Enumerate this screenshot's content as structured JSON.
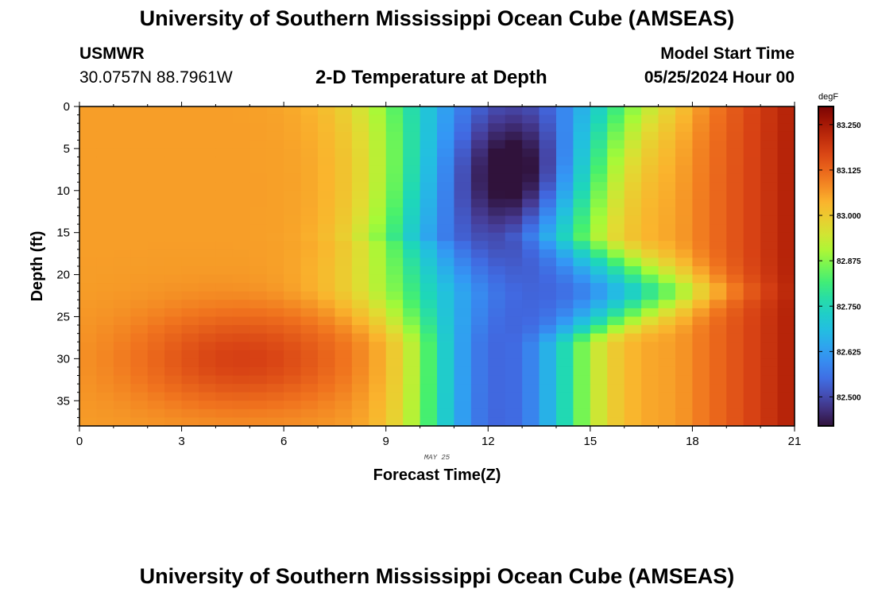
{
  "header": {
    "title_top": "University of Southern Mississippi Ocean Cube (AMSEAS)",
    "station": "USMWR",
    "coords": "30.0757N  88.7961W",
    "model_start_label": "Model Start Time",
    "model_start_value": "05/25/2024 Hour 00",
    "title_bottom": "University of Southern Mississippi Ocean Cube (AMSEAS)"
  },
  "chart_data": {
    "type": "heatmap",
    "title": "2-D Temperature at Depth",
    "xlabel": "Forecast Time(Z)",
    "ylabel": "Depth (ft)",
    "date_label": "MAY 25",
    "xlim": [
      0,
      21
    ],
    "ylim": [
      0,
      38
    ],
    "x_ticks": [
      0,
      3,
      6,
      9,
      12,
      15,
      18,
      21
    ],
    "y_ticks": [
      0,
      5,
      10,
      15,
      20,
      25,
      30,
      35
    ],
    "colorbar": {
      "unit": "degF",
      "min": 82.42,
      "max": 83.3,
      "ticks": [
        82.5,
        82.625,
        82.75,
        82.875,
        83.0,
        83.125,
        83.25
      ],
      "tick_labels": [
        "82.500",
        "82.625",
        "82.750",
        "82.875",
        "83.000",
        "83.125",
        "83.250"
      ]
    },
    "field_description": "Warm (~83.0-83.3 degF) at start and end of forecast at all depths; cold core (~82.43 degF) near hours 12-14 in upper 15 ft; warm deep layer (~83.1 degF) below 25 ft during hours 0-8.",
    "grid": {
      "x_cells": 42,
      "y_cells": 38
    }
  }
}
